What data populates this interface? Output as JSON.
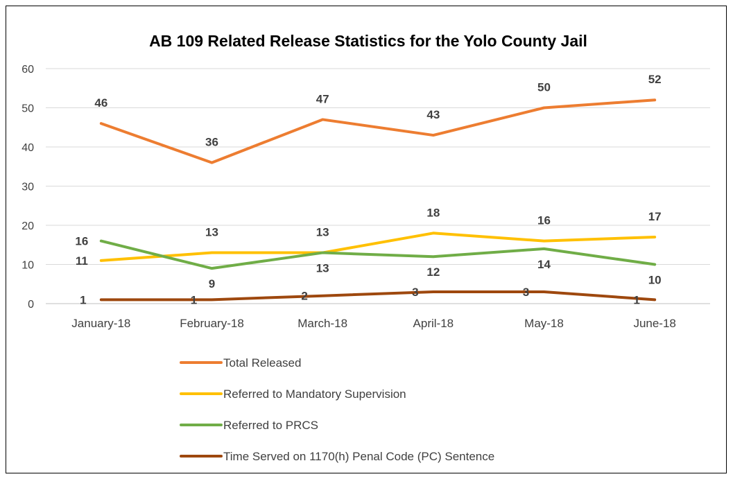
{
  "chart_data": {
    "type": "line",
    "title": "AB 109 Related Release Statistics for the Yolo County Jail",
    "xlabel": "",
    "ylabel": "",
    "categories": [
      "January-18",
      "February-18",
      "March-18",
      "April-18",
      "May-18",
      "June-18"
    ],
    "ylim": [
      0,
      60
    ],
    "yticks": [
      0,
      10,
      20,
      30,
      40,
      50,
      60
    ],
    "grid": true,
    "legend_position": "bottom",
    "data_labels": true,
    "series": [
      {
        "name": "Total Released",
        "color": "#ED7D31",
        "values": [
          46,
          36,
          47,
          43,
          50,
          52
        ]
      },
      {
        "name": "Referred to Mandatory Supervision",
        "color": "#FFC000",
        "values": [
          11,
          13,
          13,
          18,
          16,
          17
        ]
      },
      {
        "name": "Referred to PRCS",
        "color": "#70AD47",
        "values": [
          16,
          9,
          13,
          12,
          14,
          10
        ]
      },
      {
        "name": "Time Served on 1170(h) Penal Code (PC) Sentence",
        "color": "#9E480E",
        "values": [
          1,
          1,
          2,
          3,
          3,
          1
        ]
      }
    ]
  }
}
